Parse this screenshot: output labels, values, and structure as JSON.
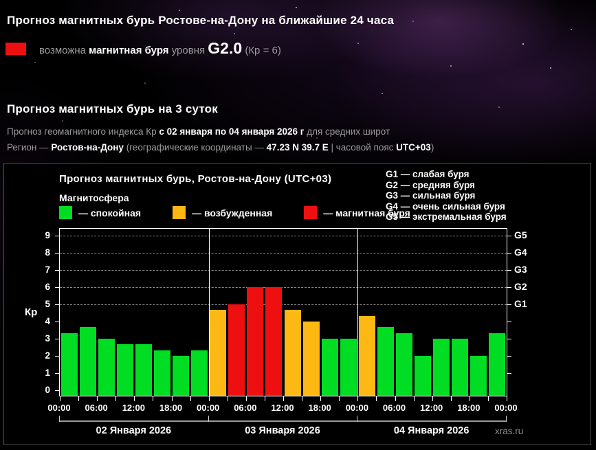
{
  "page": {
    "header_24h": "Прогноз магнитных бурь Ростове-на-Дону на ближайшие 24 часа",
    "alert": {
      "swatch_color": "#ee1010",
      "prefix": "возможна ",
      "storm_label": "магнитная буря",
      "level_word": " уровня ",
      "level": "G2.0",
      "kp_note": " (Кр = 6)"
    },
    "header_3day": "Прогноз магнитных бурь на 3 суток",
    "line_index": {
      "t1": "Прогноз геомагнитного индекса Кр ",
      "b1": "с 02 января по 04 января 2026 г",
      "t2": " для средних широт"
    },
    "line_region": {
      "t1": "Регион — ",
      "b1": "Ростов-на-Дону",
      "t2": " (географические координаты — ",
      "b2": "47.23 N 39.7 E",
      "t3": " | часовой пояс ",
      "b3": "UTC+03",
      "t4": ")"
    }
  },
  "chart_data": {
    "type": "bar",
    "title": "Прогноз магнитных бурь, Ростов-на-Дону (UTC+03)",
    "subtitle": "Магнитосфера",
    "ylabel": "Кр",
    "ylim": [
      0,
      9.5
    ],
    "y_ticks": [
      0,
      1,
      2,
      3,
      4,
      5,
      6,
      7,
      8,
      9
    ],
    "grid": "dashed horizontal lines at Kp 5-9 (G1-G5)",
    "legend_position": "top-left",
    "legend": [
      {
        "key": "quiet",
        "label": "— спокойная",
        "color": "#00dd22"
      },
      {
        "key": "excited",
        "label": "— возбужденная",
        "color": "#fdb813"
      },
      {
        "key": "storm",
        "label": "— магнитная буря",
        "color": "#ee1010"
      }
    ],
    "g_scale_legend": [
      "G1 — слабая буря",
      "G2 — средняя буря",
      "G3 — сильная буря",
      "G4 — очень сильная буря",
      "G5 — экстремальная буря"
    ],
    "g_levels": [
      {
        "kp": 5,
        "label": "G1"
      },
      {
        "kp": 6,
        "label": "G2"
      },
      {
        "kp": 7,
        "label": "G3"
      },
      {
        "kp": 8,
        "label": "G4"
      },
      {
        "kp": 9,
        "label": "G5"
      }
    ],
    "x_tick_labels": [
      "00:00",
      "06:00",
      "12:00",
      "18:00",
      "00:00",
      "06:00",
      "12:00",
      "18:00",
      "00:00",
      "06:00",
      "12:00",
      "18:00",
      "00:00"
    ],
    "bars_per_day": 8,
    "day_labels": [
      "02 Января 2026",
      "03 Января 2026",
      "04 Января 2026"
    ],
    "values": [
      3.33,
      3.67,
      3,
      2.67,
      2.67,
      2.33,
      2,
      2.33,
      4.67,
      5,
      6,
      6,
      4.67,
      4,
      3,
      3,
      4.33,
      3.67,
      3.33,
      2,
      3,
      3,
      2,
      3.33
    ],
    "statuses": [
      "quiet",
      "quiet",
      "quiet",
      "quiet",
      "quiet",
      "quiet",
      "quiet",
      "quiet",
      "excited",
      "storm",
      "storm",
      "storm",
      "excited",
      "excited",
      "quiet",
      "quiet",
      "excited",
      "quiet",
      "quiet",
      "quiet",
      "quiet",
      "quiet",
      "quiet",
      "quiet"
    ],
    "watermark": "xras.ru"
  }
}
